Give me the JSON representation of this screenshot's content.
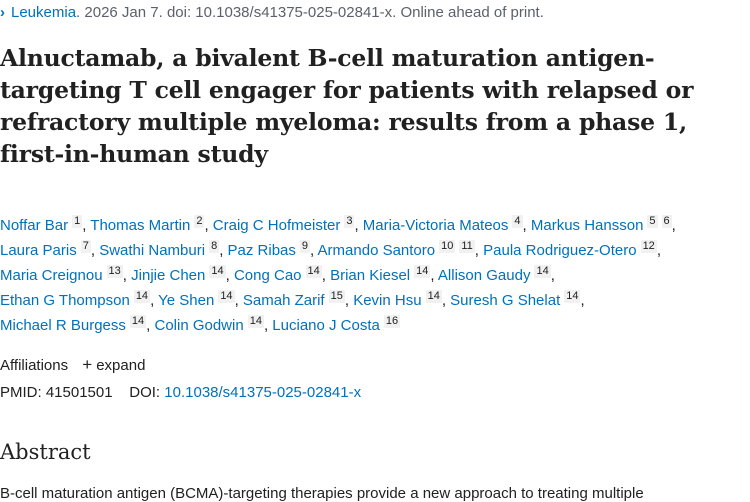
{
  "citation": {
    "journal": "Leukemia",
    "rest": ". 2026 Jan 7. doi: 10.1038/s41375-025-02841-x. Online ahead of print."
  },
  "title_lines": [
    "Alnuctamab, a bivalent B-cell maturation antigen-",
    "targeting T cell engager for patients with relapsed or",
    "refractory multiple myeloma: results from a phase 1,",
    "first-in-human study"
  ],
  "author_rows": [
    [
      {
        "name": "Noffar Bar",
        "aff": [
          "1"
        ]
      },
      {
        "name": "Thomas Martin",
        "aff": [
          "2"
        ]
      },
      {
        "name": "Craig C Hofmeister",
        "aff": [
          "3"
        ]
      },
      {
        "name": "Maria-Victoria Mateos",
        "aff": [
          "4"
        ]
      },
      {
        "name": "Markus Hansson",
        "aff": [
          "5",
          "6"
        ]
      }
    ],
    [
      {
        "name": "Laura Paris",
        "aff": [
          "7"
        ]
      },
      {
        "name": "Swathi Namburi",
        "aff": [
          "8"
        ]
      },
      {
        "name": "Paz Ribas",
        "aff": [
          "9"
        ]
      },
      {
        "name": "Armando Santoro",
        "aff": [
          "10",
          "11"
        ]
      },
      {
        "name": "Paula Rodriguez-Otero",
        "aff": [
          "12"
        ]
      }
    ],
    [
      {
        "name": "Maria Creignou",
        "aff": [
          "13"
        ]
      },
      {
        "name": "Jinjie Chen",
        "aff": [
          "14"
        ]
      },
      {
        "name": "Cong Cao",
        "aff": [
          "14"
        ]
      },
      {
        "name": "Brian Kiesel",
        "aff": [
          "14"
        ]
      },
      {
        "name": "Allison Gaudy",
        "aff": [
          "14"
        ]
      }
    ],
    [
      {
        "name": "Ethan G Thompson",
        "aff": [
          "14"
        ]
      },
      {
        "name": "Ye Shen",
        "aff": [
          "14"
        ]
      },
      {
        "name": "Samah Zarif",
        "aff": [
          "15"
        ]
      },
      {
        "name": "Kevin Hsu",
        "aff": [
          "14"
        ]
      },
      {
        "name": "Suresh G Shelat",
        "aff": [
          "14"
        ]
      }
    ],
    [
      {
        "name": "Michael R Burgess",
        "aff": [
          "14"
        ]
      },
      {
        "name": "Colin Godwin",
        "aff": [
          "14"
        ]
      },
      {
        "name": "Luciano J Costa",
        "aff": [
          "16"
        ]
      }
    ]
  ],
  "affiliations": {
    "label": "Affiliations",
    "expand": "expand",
    "expand_icon": "plus-icon"
  },
  "ids": {
    "pmid_label": "PMID:",
    "pmid": "41501501",
    "doi_label": "DOI:",
    "doi": "10.1038/s41375-025-02841-x"
  },
  "abstract": {
    "heading": "Abstract",
    "text": "B-cell maturation antigen (BCMA)-targeting therapies provide a new approach to treating multiple"
  },
  "colors": {
    "link": "#0071bc",
    "text": "#212121"
  }
}
